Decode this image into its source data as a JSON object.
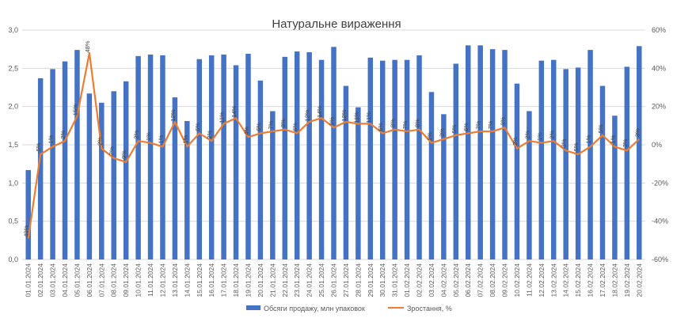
{
  "chart_data": {
    "type": "bar",
    "title": "Натуральне вираження",
    "categories": [
      "01.01.2024",
      "02.01.2024",
      "03.01.2024",
      "04.01.2024",
      "05.01.2024",
      "06.01.2024",
      "07.01.2024",
      "08.01.2024",
      "09.01.2024",
      "10.01.2024",
      "11.01.2024",
      "12.01.2024",
      "13.01.2024",
      "14.01.2024",
      "15.01.2024",
      "16.01.2024",
      "17.01.2024",
      "18.01.2024",
      "19.01.2024",
      "20.01.2024",
      "21.01.2024",
      "22.01.2024",
      "23.01.2024",
      "24.01.2024",
      "25.01.2024",
      "26.01.2024",
      "27.01.2024",
      "28.01.2024",
      "29.01.2024",
      "30.01.2024",
      "31.01.2024",
      "01.02.2024",
      "02.02.2024",
      "03.02.2024",
      "04.02.2024",
      "05.02.2024",
      "06.02.2024",
      "07.02.2024",
      "08.02.2024",
      "09.02.2024",
      "10.02.2024",
      "11.02.2024",
      "12.02.2024",
      "13.02.2024",
      "14.02.2024",
      "15.02.2024",
      "16.02.2024",
      "17.02.2024",
      "18.02.2024",
      "19.02.2024",
      "20.02.2024"
    ],
    "series": [
      {
        "name": "Обсяги продажу, млн упаковок",
        "type": "bar",
        "axis": "left",
        "color": "#4472C4",
        "values": [
          1.17,
          2.37,
          2.49,
          2.59,
          2.74,
          2.17,
          2.05,
          2.2,
          2.33,
          2.66,
          2.68,
          2.67,
          2.12,
          1.81,
          2.62,
          2.67,
          2.68,
          2.54,
          2.69,
          2.34,
          1.94,
          2.65,
          2.72,
          2.71,
          2.61,
          2.78,
          2.27,
          1.99,
          2.64,
          2.6,
          2.61,
          2.61,
          2.67,
          2.19,
          1.9,
          2.56,
          2.8,
          2.8,
          2.75,
          2.74,
          2.3,
          1.94,
          2.6,
          2.61,
          2.49,
          2.51,
          2.74,
          2.27,
          1.88,
          2.52,
          2.79
        ]
      },
      {
        "name": "Зростання, %",
        "type": "line",
        "axis": "right",
        "color": "#ED7D31",
        "values": [
          -49,
          -5,
          -1,
          2,
          15,
          48,
          -2,
          -7,
          -9,
          2,
          1,
          -1,
          12,
          -1,
          6,
          2,
          11,
          14,
          4,
          6,
          7,
          8,
          6,
          12,
          14,
          9,
          12,
          11,
          11,
          6,
          8,
          7,
          8,
          1,
          3,
          5,
          6,
          7,
          7,
          9,
          -2,
          2,
          1,
          2,
          -3,
          -5,
          -1,
          5,
          -1,
          -3,
          3
        ],
        "labels": [
          "-49%",
          "-5%",
          "-1%",
          "2%",
          "15%",
          "48%",
          "-2%",
          "-7%",
          "-9%",
          "2%",
          "1%",
          "-1%",
          "12%",
          "-1%",
          "6%",
          "2%",
          "11%",
          "14%",
          "4%",
          "6%",
          "7%",
          "8%",
          "6%",
          "12%",
          "14%",
          "9%",
          "12%",
          "11%",
          "11%",
          "6%",
          "8%",
          "7%",
          "8%",
          "1%",
          "3%",
          "5%",
          "6%",
          "7%",
          "7%",
          "9%",
          "-2%",
          "2%",
          "1%",
          "2%",
          "-3%",
          "-5%",
          "-1%",
          "5%",
          "-1%",
          "-3%",
          "3%"
        ]
      }
    ],
    "y_left": {
      "ylim": [
        0,
        3
      ],
      "ticks": [
        "0,0",
        "0,5",
        "1,0",
        "1,5",
        "2,0",
        "2,5",
        "3,0"
      ]
    },
    "y_right": {
      "ylim": [
        -60,
        60
      ],
      "ticks": [
        "-60%",
        "-40%",
        "-20%",
        "0%",
        "20%",
        "40%",
        "60%"
      ]
    },
    "grid": true,
    "legend_position": "bottom"
  }
}
